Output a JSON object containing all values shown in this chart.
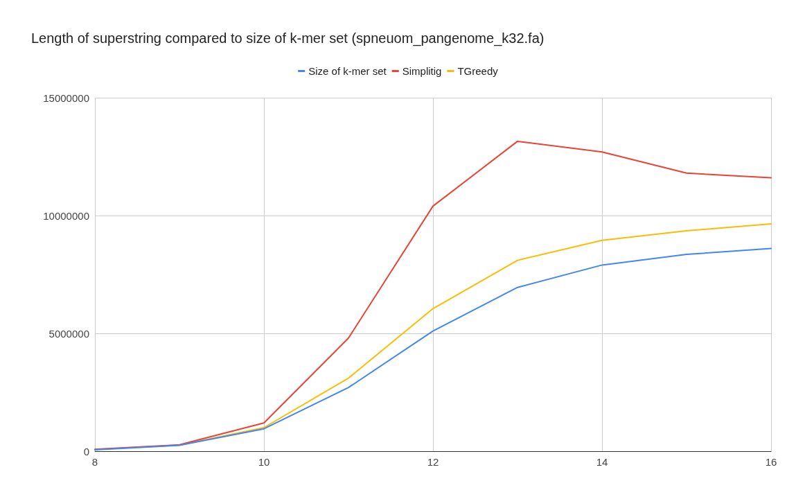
{
  "chart_data": {
    "type": "line",
    "title": "Length of superstring compared to size of k-mer set (spneuom_pangenome_k32.fa)",
    "x": [
      8,
      9,
      10,
      11,
      12,
      13,
      14,
      15,
      16
    ],
    "series": [
      {
        "name": "Size of k-mer set",
        "color": "#4285f4",
        "values": [
          60000,
          250000,
          950000,
          2700000,
          5100000,
          6950000,
          7900000,
          8350000,
          8600000
        ]
      },
      {
        "name": "Simplitig",
        "color": "#ea4335",
        "values": [
          80000,
          270000,
          1200000,
          4800000,
          10400000,
          13150000,
          12700000,
          11800000,
          11600000
        ]
      },
      {
        "name": "TGreedy",
        "color": "#fbbc04",
        "values": [
          70000,
          260000,
          1000000,
          3100000,
          6050000,
          8100000,
          8950000,
          9350000,
          9650000
        ]
      }
    ],
    "xlim": [
      8,
      16
    ],
    "xticks": [
      8,
      10,
      12,
      14,
      16
    ],
    "ylim": [
      0,
      15000000
    ],
    "yticks": [
      0,
      5000000,
      10000000,
      15000000
    ],
    "grid": true,
    "legend": "top",
    "marker": "none",
    "line_style": "solid"
  }
}
